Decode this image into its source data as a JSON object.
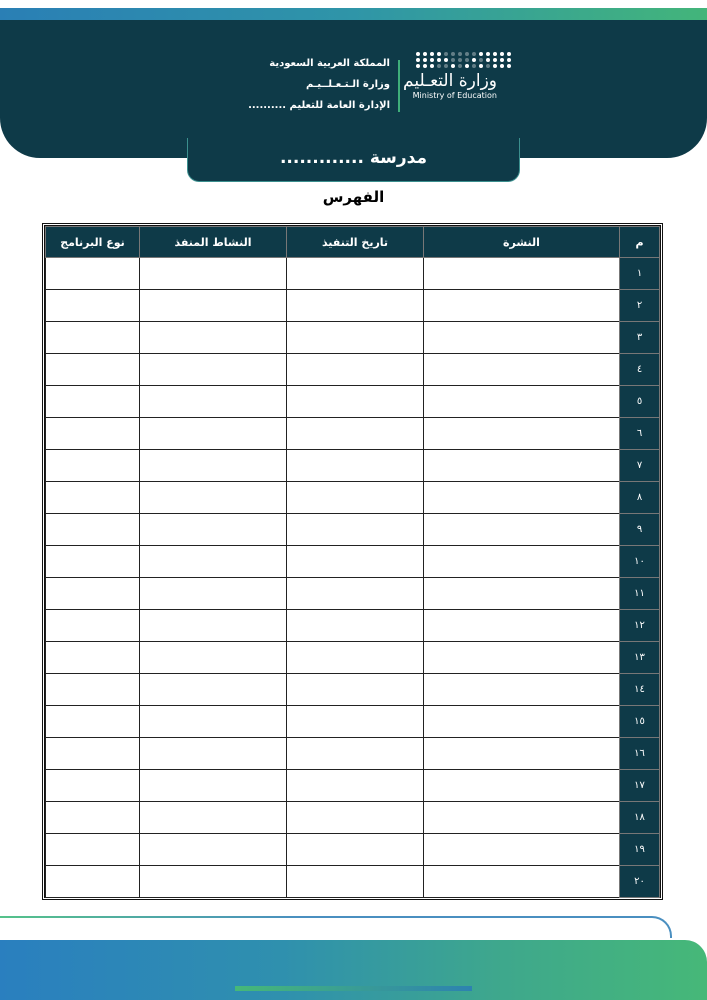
{
  "header": {
    "lines": [
      "المملكة العربية السعودية",
      "وزارة الـتـعـلــيـم",
      "الإدارة العامة للتعليم .........."
    ],
    "logo_ar": "وزارة التعـليم",
    "logo_en": "Ministry of Education",
    "school": "مدرسة ............."
  },
  "title": "الفهرس",
  "table": {
    "headers": [
      "م",
      "النشرة",
      "تاريخ التنفيذ",
      "النشاط المنفذ",
      "نوع البرنامج"
    ],
    "row_numbers": [
      "١",
      "٢",
      "٣",
      "٤",
      "٥",
      "٦",
      "٧",
      "٨",
      "٩",
      "١٠",
      "١١",
      "١٢",
      "١٣",
      "١٤",
      "١٥",
      "١٦",
      "١٧",
      "١٨",
      "١٩",
      "٢٠"
    ]
  },
  "colors": {
    "dark": "#0e3a48",
    "blue": "#2a7fbf",
    "green": "#46b878"
  }
}
